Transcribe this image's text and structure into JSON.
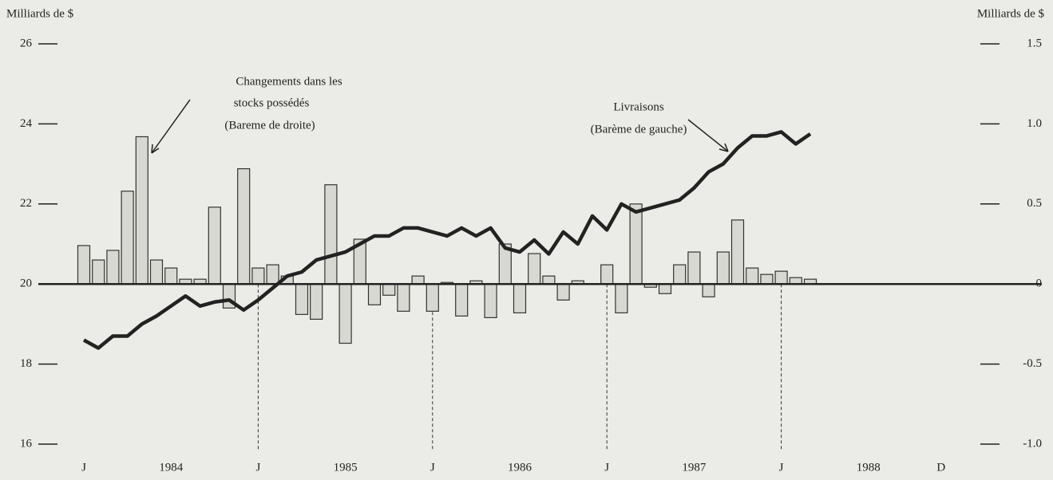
{
  "chart_data": {
    "type": "bar",
    "y_label": "Milliards de $",
    "y2_label": "Milliards de $",
    "annotations": [
      "Changements dans les",
      "stocks possédés",
      "(Bareme de droite)",
      "Livraisons",
      "(Barème de gauche)"
    ],
    "categories": [
      "J",
      null,
      null,
      null,
      null,
      null,
      "1984",
      null,
      null,
      null,
      null,
      null,
      "J",
      null,
      null,
      null,
      null,
      null,
      "1985",
      null,
      null,
      null,
      null,
      null,
      "J",
      null,
      null,
      null,
      null,
      null,
      "1986",
      null,
      null,
      null,
      null,
      null,
      "J",
      null,
      null,
      null,
      null,
      null,
      "1987",
      null,
      null,
      null,
      null,
      null,
      "J",
      null,
      null,
      null,
      null,
      null,
      "1988",
      null,
      null,
      null,
      null,
      "D"
    ],
    "ylim": [
      16,
      26
    ],
    "yticks": [
      16,
      18,
      20,
      22,
      24,
      26
    ],
    "y2lim": [
      -1,
      1.5
    ],
    "y2ticks": [
      {
        "value": -1,
        "label": "-1.0"
      },
      -0.5,
      0,
      0.5,
      {
        "value": 1,
        "label": "1.0"
      },
      1.5
    ],
    "series": [
      {
        "name": "Changements dans les stocks possédés",
        "type": "bar",
        "axis": "y2",
        "color": "#d8d8d2",
        "values": [
          0.24,
          0.15,
          0.21,
          0.58,
          0.92,
          0.15,
          0.1,
          0.03,
          0.03,
          0.48,
          -0.15,
          0.72,
          0.1,
          0.12,
          0.05,
          -0.19,
          -0.22,
          0.62,
          -0.37,
          0.28,
          -0.13,
          -0.07,
          -0.17,
          0.05,
          -0.17,
          0.01,
          -0.2,
          0.02,
          -0.21,
          0.25,
          -0.18,
          0.19,
          0.05,
          -0.1,
          0.02,
          0.0,
          0.12,
          -0.18,
          0.5,
          -0.02,
          -0.06,
          0.12,
          0.2,
          -0.08,
          0.2,
          0.4,
          0.1,
          0.06,
          0.08,
          0.04,
          0.03,
          null,
          null,
          null,
          null,
          null,
          null,
          null,
          null,
          null
        ]
      },
      {
        "name": "Livraisons",
        "type": "line",
        "axis": "y",
        "color": "#222222",
        "values": [
          18.6,
          18.4,
          18.7,
          18.7,
          19.0,
          19.2,
          19.45,
          19.7,
          19.45,
          19.55,
          19.6,
          19.35,
          19.6,
          19.9,
          20.2,
          20.3,
          20.6,
          20.7,
          20.8,
          21.0,
          21.2,
          21.2,
          21.4,
          21.4,
          21.3,
          21.2,
          21.4,
          21.2,
          21.4,
          20.9,
          20.8,
          21.1,
          20.75,
          21.3,
          21.0,
          21.7,
          21.35,
          22.0,
          21.8,
          21.9,
          22.0,
          22.1,
          22.4,
          22.8,
          23.0,
          23.4,
          23.7,
          23.7,
          23.8,
          23.5,
          23.75,
          null,
          null,
          null,
          null,
          null,
          null,
          null,
          null,
          null
        ]
      }
    ]
  }
}
